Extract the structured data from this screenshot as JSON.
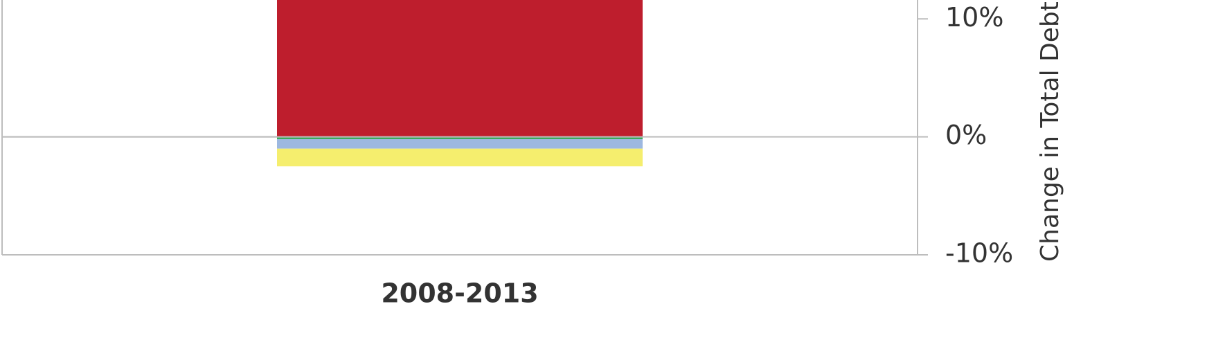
{
  "chart_data": {
    "type": "bar",
    "stacked": true,
    "y_axis_label": "Change in Total Debt",
    "categories": [
      "2008-2013"
    ],
    "series": [
      {
        "color": "#be1e2d",
        "values": [
          15
        ]
      },
      {
        "color": "#3aaa5c",
        "values": [
          -0.2
        ]
      },
      {
        "color": "#9db8e0",
        "values": [
          -0.8
        ]
      },
      {
        "color": "#f5ee6e",
        "values": [
          -1.5
        ]
      }
    ],
    "ylim": [
      -10,
      11.6
    ],
    "yticks": [
      {
        "value": -10,
        "label": "-10%"
      },
      {
        "value": 0,
        "label": "0%"
      },
      {
        "value": 10,
        "label": "10%"
      }
    ],
    "grid": false
  }
}
